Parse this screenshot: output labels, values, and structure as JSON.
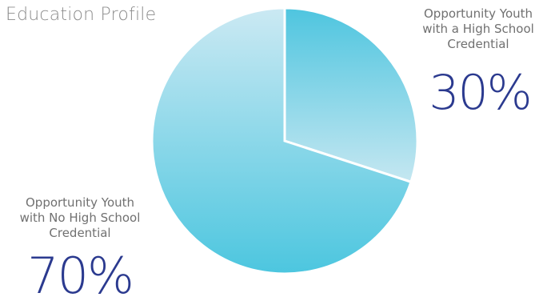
{
  "chart_data": {
    "type": "pie",
    "title": "Education Profile",
    "slices": [
      {
        "label_lines": [
          "Opportunity Youth",
          "with a High School",
          "Credential"
        ],
        "value": 30,
        "display": "30%",
        "color_from": "#4ec5df",
        "color_to": "#c5e7f1"
      },
      {
        "label_lines": [
          "Opportunity Youth",
          "with No High School",
          "Credential"
        ],
        "value": 70,
        "display": "70%",
        "color_from": "#cbe9f3",
        "color_to": "#4cc6df"
      }
    ],
    "start_angle": "12 o'clock",
    "direction": "clockwise",
    "legend": "none"
  },
  "colors": {
    "title": "#8c8c8c",
    "label_text": "#707070",
    "percent_text": "#2b3a8f",
    "slice_border": "#ffffff"
  }
}
